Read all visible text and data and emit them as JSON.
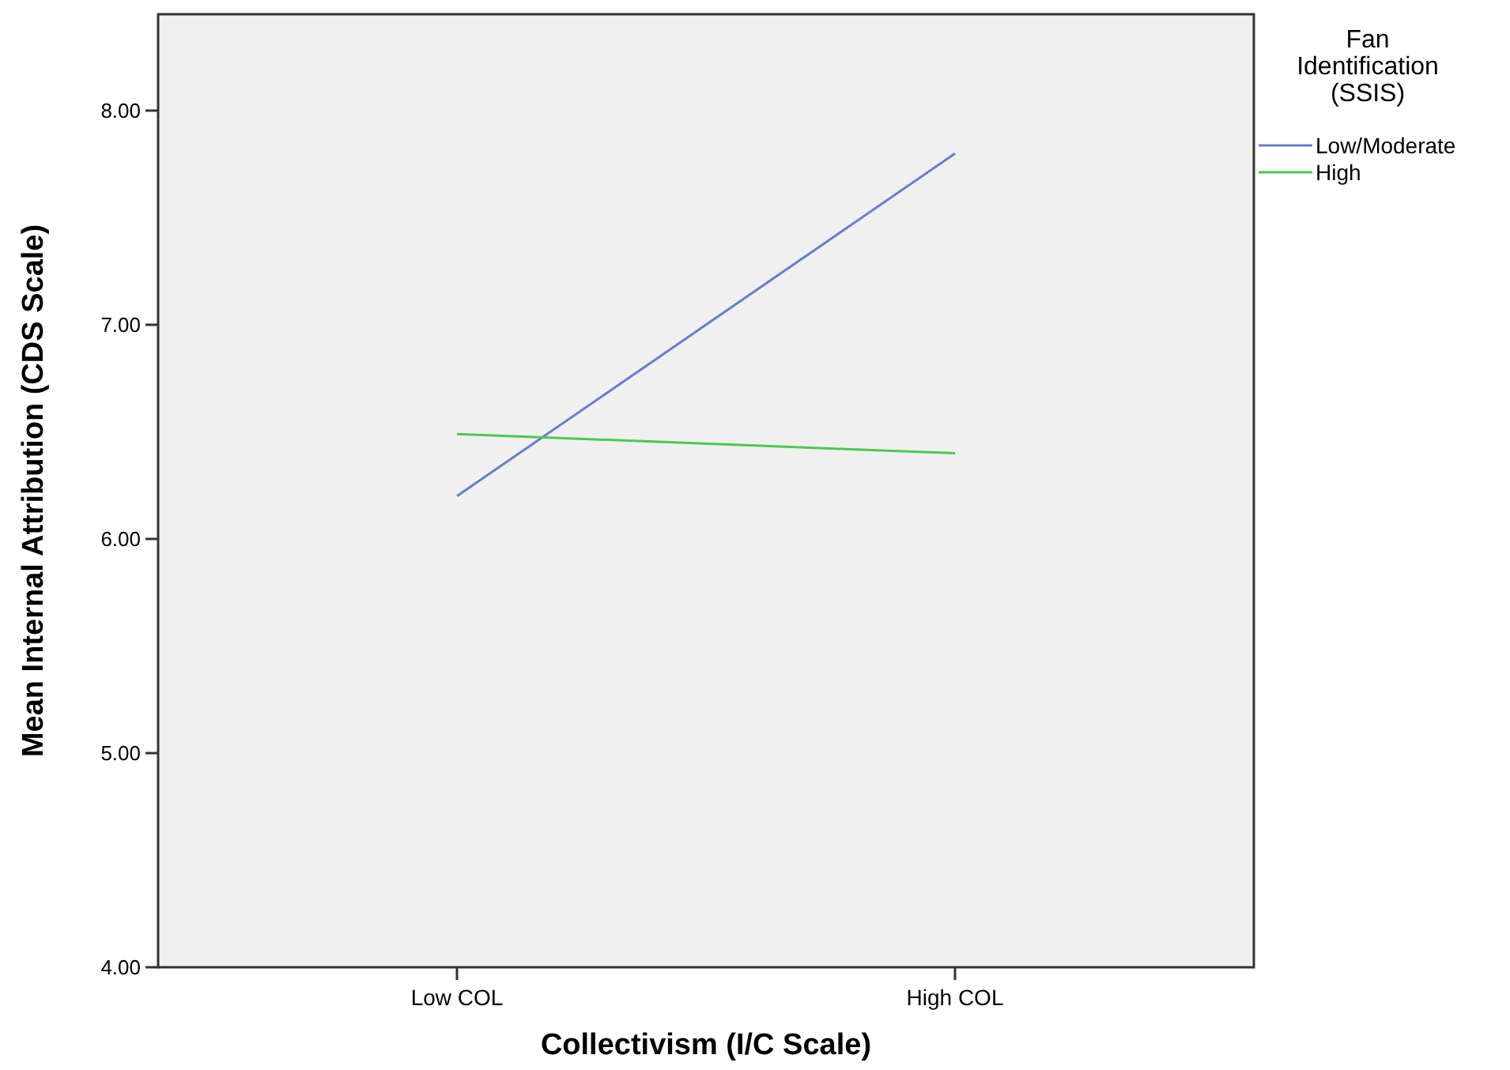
{
  "chart_data": {
    "type": "line",
    "xlabel": "Collectivism (I/C Scale)",
    "ylabel": "Mean Internal Attribution (CDS Scale)",
    "legend_title": "Fan Identification (SSIS)",
    "categories": [
      "Low COL",
      "High COL"
    ],
    "series": [
      {
        "name": "Low/Moderate",
        "color": "#6a7ecb",
        "values": [
          6.2,
          7.8
        ]
      },
      {
        "name": "High",
        "color": "#4cc94c",
        "values": [
          6.49,
          6.4
        ]
      }
    ],
    "ylim": [
      4,
      8.45
    ],
    "yticks": [
      {
        "value": 4,
        "label": "4.00"
      },
      {
        "value": 5,
        "label": "5.00"
      },
      {
        "value": 6,
        "label": "6.00"
      },
      {
        "value": 7,
        "label": "7.00"
      },
      {
        "value": 8,
        "label": "8.00"
      }
    ],
    "grid": false,
    "legend": "right",
    "marker": "none",
    "line_style": "solid"
  }
}
